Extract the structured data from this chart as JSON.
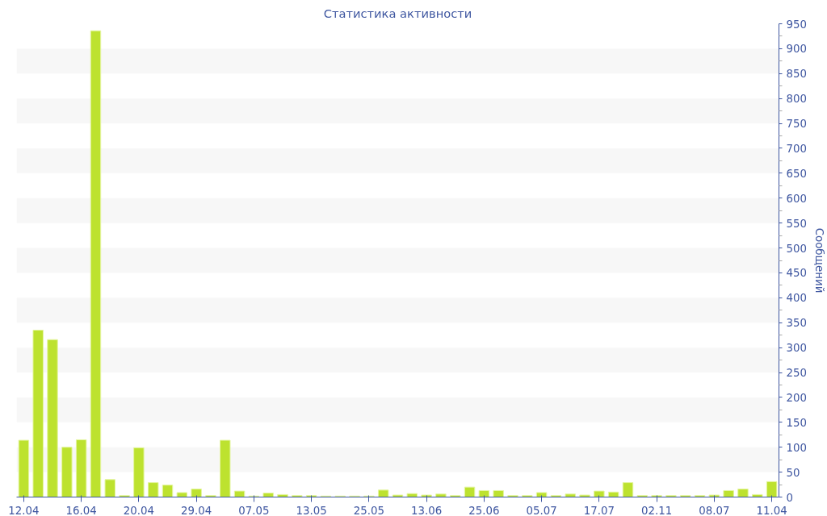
{
  "chart_data": {
    "type": "bar",
    "title": "Статистика активности",
    "ylabel": "Сообщений",
    "categories": [
      "12.04",
      null,
      null,
      null,
      "16.04",
      null,
      null,
      null,
      "20.04",
      null,
      null,
      null,
      "29.04",
      null,
      null,
      null,
      "07.05",
      null,
      null,
      null,
      "13.05",
      null,
      null,
      null,
      "25.05",
      null,
      null,
      null,
      "13.06",
      null,
      null,
      null,
      "25.06",
      null,
      null,
      null,
      "05.07",
      null,
      null,
      null,
      "17.07",
      null,
      null,
      null,
      "02.11",
      null,
      null,
      null,
      "08.07",
      null,
      null,
      null,
      "11.04"
    ],
    "values": [
      114,
      335,
      316,
      100,
      115,
      936,
      35,
      3,
      99,
      29,
      24,
      9,
      16,
      3,
      114,
      12,
      2,
      8,
      5,
      3,
      3,
      2,
      2,
      2,
      2,
      14,
      4,
      7,
      4,
      6,
      3,
      20,
      13,
      13,
      3,
      3,
      9,
      3,
      6,
      4,
      12,
      10,
      29,
      3,
      3,
      3,
      3,
      3,
      4,
      13,
      16,
      5,
      31
    ],
    "color": "#bde22f",
    "ylim": [
      0,
      950
    ],
    "yticks": [
      0,
      50,
      100,
      150,
      200,
      250,
      300,
      350,
      400,
      450,
      500,
      550,
      600,
      650,
      700,
      750,
      800,
      850,
      900,
      950
    ]
  }
}
